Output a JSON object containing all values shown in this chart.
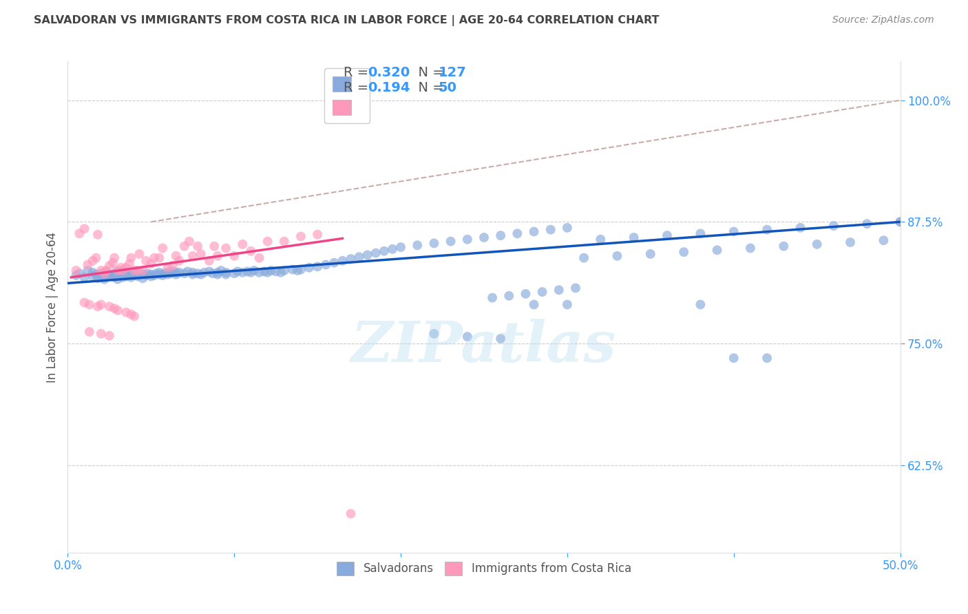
{
  "title": "SALVADORAN VS IMMIGRANTS FROM COSTA RICA IN LABOR FORCE | AGE 20-64 CORRELATION CHART",
  "source": "Source: ZipAtlas.com",
  "ylabel": "In Labor Force | Age 20-64",
  "xmin": 0.0,
  "xmax": 0.5,
  "ymin": 0.535,
  "ymax": 1.04,
  "yticks": [
    0.625,
    0.75,
    0.875,
    1.0
  ],
  "ytick_labels": [
    "62.5%",
    "75.0%",
    "87.5%",
    "100.0%"
  ],
  "xticks": [
    0.0,
    0.1,
    0.2,
    0.3,
    0.4,
    0.5
  ],
  "xtick_labels": [
    "0.0%",
    "",
    "",
    "",
    "",
    "50.0%"
  ],
  "color_blue": "#88AADD",
  "color_pink": "#FF99BB",
  "color_blue_line": "#1155BB",
  "color_pink_line": "#EE4488",
  "color_dashed": "#CCAAAA",
  "R_blue": 0.32,
  "N_blue": 127,
  "R_pink": 0.194,
  "N_pink": 50,
  "axis_color": "#3399FF",
  "title_color": "#444444",
  "blue_scatter_x": [
    0.005,
    0.007,
    0.01,
    0.012,
    0.015,
    0.015,
    0.017,
    0.018,
    0.02,
    0.02,
    0.022,
    0.022,
    0.023,
    0.025,
    0.025,
    0.027,
    0.028,
    0.028,
    0.03,
    0.03,
    0.03,
    0.032,
    0.033,
    0.033,
    0.035,
    0.035,
    0.036,
    0.038,
    0.038,
    0.04,
    0.04,
    0.042,
    0.043,
    0.045,
    0.045,
    0.047,
    0.048,
    0.05,
    0.05,
    0.052,
    0.053,
    0.055,
    0.055,
    0.057,
    0.058,
    0.06,
    0.06,
    0.062,
    0.063,
    0.065,
    0.065,
    0.067,
    0.07,
    0.072,
    0.075,
    0.075,
    0.078,
    0.08,
    0.082,
    0.085,
    0.087,
    0.09,
    0.09,
    0.092,
    0.095,
    0.095,
    0.1,
    0.102,
    0.105,
    0.108,
    0.11,
    0.112,
    0.115,
    0.118,
    0.12,
    0.122,
    0.125,
    0.128,
    0.13,
    0.135,
    0.138,
    0.14,
    0.145,
    0.15,
    0.155,
    0.16,
    0.165,
    0.17,
    0.175,
    0.18,
    0.185,
    0.19,
    0.195,
    0.2,
    0.21,
    0.22,
    0.23,
    0.24,
    0.25,
    0.26,
    0.27,
    0.28,
    0.29,
    0.3,
    0.32,
    0.34,
    0.36,
    0.38,
    0.4,
    0.42,
    0.44,
    0.46,
    0.48,
    0.5,
    0.31,
    0.33,
    0.35,
    0.37,
    0.39,
    0.41,
    0.43,
    0.45,
    0.47,
    0.49,
    0.5,
    0.255,
    0.265,
    0.275,
    0.285,
    0.295,
    0.305
  ],
  "blue_scatter_y": [
    0.82,
    0.822,
    0.818,
    0.825,
    0.823,
    0.819,
    0.821,
    0.817,
    0.822,
    0.818,
    0.82,
    0.816,
    0.824,
    0.819,
    0.821,
    0.82,
    0.822,
    0.818,
    0.82,
    0.816,
    0.824,
    0.822,
    0.818,
    0.82,
    0.821,
    0.819,
    0.823,
    0.82,
    0.818,
    0.822,
    0.82,
    0.819,
    0.823,
    0.821,
    0.817,
    0.82,
    0.822,
    0.821,
    0.819,
    0.82,
    0.822,
    0.821,
    0.823,
    0.82,
    0.822,
    0.821,
    0.823,
    0.822,
    0.824,
    0.823,
    0.821,
    0.823,
    0.822,
    0.824,
    0.823,
    0.821,
    0.822,
    0.821,
    0.823,
    0.824,
    0.822,
    0.821,
    0.823,
    0.825,
    0.823,
    0.821,
    0.822,
    0.824,
    0.823,
    0.824,
    0.823,
    0.825,
    0.823,
    0.824,
    0.823,
    0.825,
    0.824,
    0.823,
    0.825,
    0.826,
    0.825,
    0.826,
    0.828,
    0.829,
    0.831,
    0.833,
    0.835,
    0.837,
    0.839,
    0.841,
    0.843,
    0.845,
    0.847,
    0.849,
    0.851,
    0.853,
    0.855,
    0.857,
    0.859,
    0.861,
    0.863,
    0.865,
    0.867,
    0.869,
    0.857,
    0.859,
    0.861,
    0.863,
    0.865,
    0.867,
    0.869,
    0.871,
    0.873,
    0.875,
    0.838,
    0.84,
    0.842,
    0.844,
    0.846,
    0.848,
    0.85,
    0.852,
    0.854,
    0.856,
    0.875,
    0.797,
    0.799,
    0.801,
    0.803,
    0.805,
    0.807
  ],
  "blue_outlier_x": [
    0.28,
    0.3,
    0.4,
    0.42,
    0.38,
    0.22,
    0.24,
    0.26
  ],
  "blue_outlier_y": [
    0.79,
    0.79,
    0.735,
    0.735,
    0.79,
    0.76,
    0.757,
    0.755
  ],
  "pink_scatter_x": [
    0.005,
    0.007,
    0.01,
    0.012,
    0.015,
    0.017,
    0.018,
    0.02,
    0.022,
    0.023,
    0.025,
    0.027,
    0.028,
    0.03,
    0.032,
    0.033,
    0.035,
    0.037,
    0.038,
    0.04,
    0.042,
    0.043,
    0.045,
    0.047,
    0.05,
    0.052,
    0.055,
    0.057,
    0.06,
    0.063,
    0.065,
    0.067,
    0.07,
    0.073,
    0.075,
    0.078,
    0.08,
    0.085,
    0.088,
    0.09,
    0.095,
    0.1,
    0.105,
    0.11,
    0.115,
    0.12,
    0.13,
    0.14,
    0.15,
    0.17
  ],
  "pink_scatter_y": [
    0.825,
    0.863,
    0.868,
    0.831,
    0.835,
    0.838,
    0.862,
    0.825,
    0.822,
    0.825,
    0.83,
    0.833,
    0.838,
    0.825,
    0.828,
    0.825,
    0.828,
    0.832,
    0.838,
    0.825,
    0.825,
    0.842,
    0.825,
    0.835,
    0.832,
    0.838,
    0.838,
    0.848,
    0.828,
    0.83,
    0.84,
    0.835,
    0.85,
    0.855,
    0.84,
    0.85,
    0.842,
    0.835,
    0.85,
    0.84,
    0.848,
    0.84,
    0.852,
    0.845,
    0.838,
    0.855,
    0.855,
    0.86,
    0.862,
    0.575
  ],
  "pink_outlier_x": [
    0.01,
    0.013,
    0.018,
    0.02,
    0.025,
    0.028,
    0.03,
    0.035,
    0.038,
    0.04,
    0.013,
    0.02,
    0.025
  ],
  "pink_outlier_y": [
    0.792,
    0.79,
    0.788,
    0.79,
    0.788,
    0.786,
    0.784,
    0.782,
    0.78,
    0.778,
    0.762,
    0.76,
    0.758
  ],
  "blue_line_x": [
    0.0,
    0.5
  ],
  "blue_line_y": [
    0.812,
    0.875
  ],
  "pink_line_x": [
    0.002,
    0.165
  ],
  "pink_line_y": [
    0.818,
    0.858
  ],
  "dashed_line_x": [
    0.05,
    0.5
  ],
  "dashed_line_y": [
    0.875,
    1.0
  ],
  "watermark": "ZIPatlas",
  "bottom_legend_labels": [
    "Salvadorans",
    "Immigrants from Costa Rica"
  ]
}
